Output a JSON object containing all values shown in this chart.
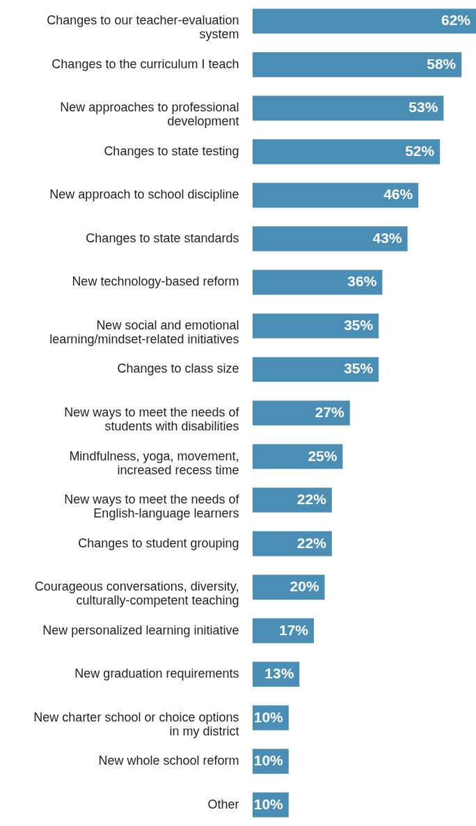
{
  "chart_data": {
    "type": "bar",
    "orientation": "horizontal",
    "grid": false,
    "tick_labels": "y",
    "categories": [
      "Changes to our teacher-evaluation system",
      "Changes to the curriculum I teach",
      "New approaches to professional development",
      "Changes to state testing",
      "New approach to school discipline",
      "Changes to state standards",
      "New technology-based reform",
      "New social and emotional learning/mindset-related initiatives",
      "Changes to class size",
      "New ways to meet the needs of students with disabilities",
      "Mindfulness, yoga, movement, increased recess time",
      "New ways to meet the needs of English-language learners",
      "Changes to student grouping",
      "Courageous conversations, diversity, culturally-competent teaching",
      "New personalized learning initiative",
      "New graduation requirements",
      "New charter school or choice options in my district",
      "New whole school reform",
      "Other"
    ],
    "values": [
      62,
      58,
      53,
      52,
      46,
      43,
      36,
      35,
      35,
      27,
      25,
      22,
      22,
      20,
      17,
      13,
      10,
      10,
      10
    ],
    "value_labels": [
      "62%",
      "58%",
      "53%",
      "52%",
      "46%",
      "43%",
      "36%",
      "35%",
      "35%",
      "27%",
      "25%",
      "22%",
      "22%",
      "20%",
      "17%",
      "13%",
      "10%",
      "10%",
      "10%"
    ],
    "color": "#4a8db5"
  }
}
